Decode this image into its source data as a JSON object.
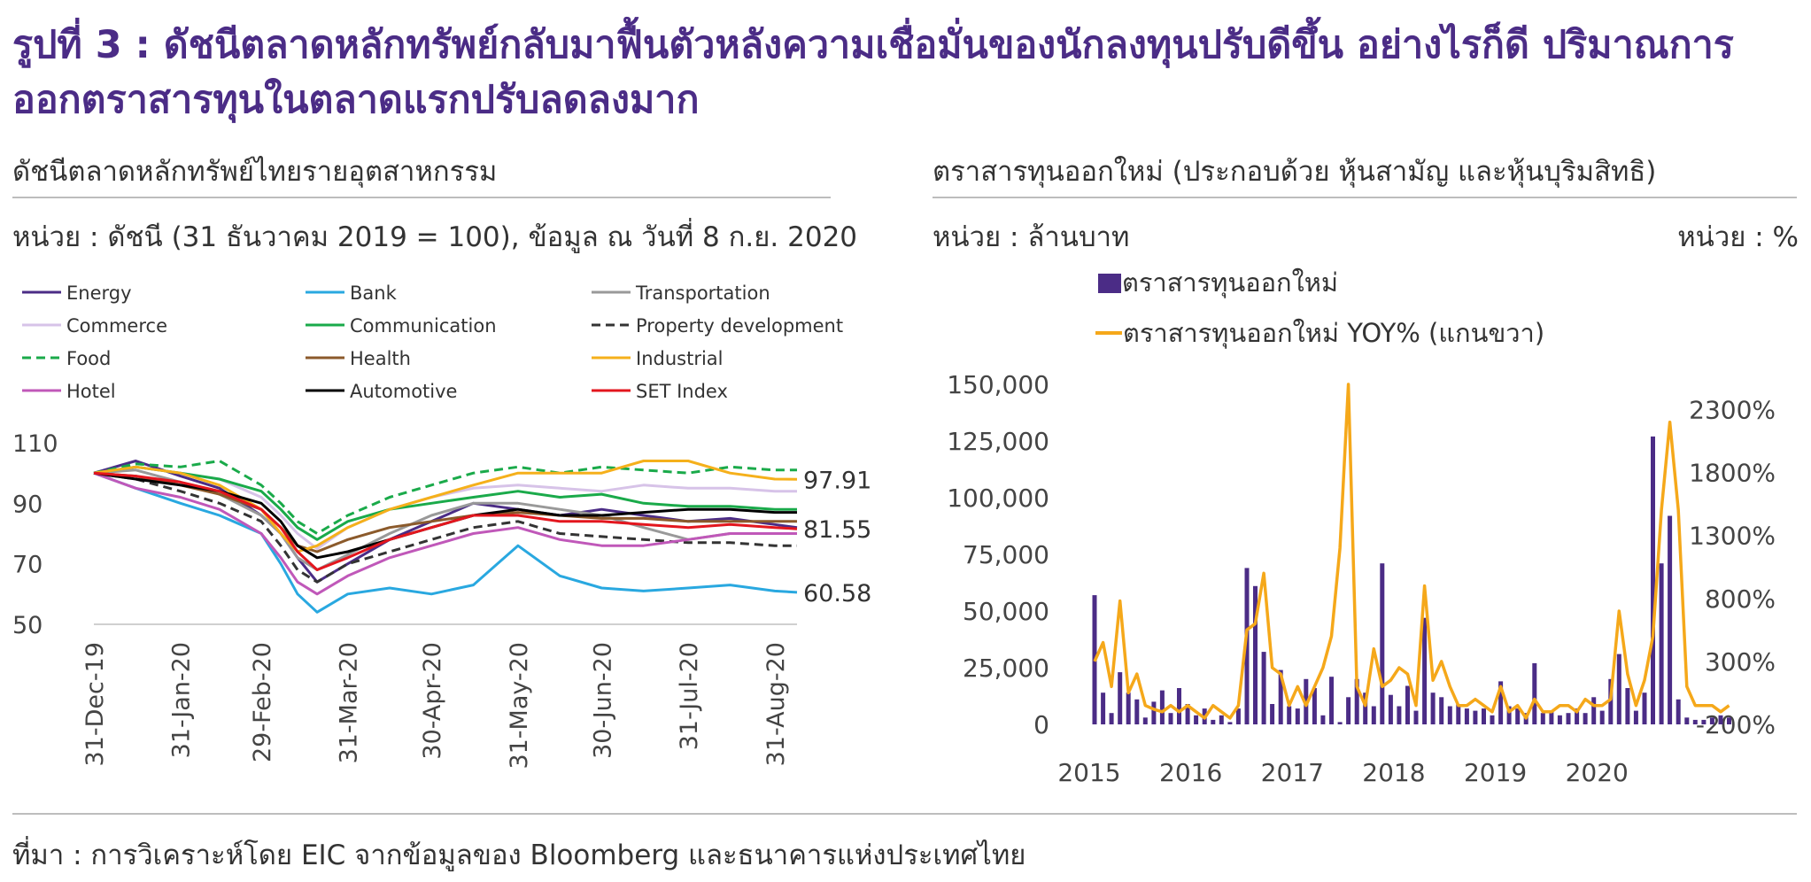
{
  "title": "รูปที่ 3 : ดัชนีตลาดหลักทรัพย์กลับมาฟื้นตัวหลังความเชื่อมั่นของนักลงทุนปรับดีขึ้น อย่างไรก็ดี ปริมาณการออกตราสารทุนในตลาดแรกปรับลดลงมาก",
  "source": "ที่มา : การวิเคราะห์โดย EIC จากข้อมูลของ Bloomberg และธนาคารแห่งประเทศไทย",
  "chart_data": [
    {
      "type": "line",
      "title": "ดัชนีตลาดหลักทรัพย์ไทยรายอุตสาหกรรม",
      "unit": "หน่วย : ดัชนี (31 ธันวาคม 2019 = 100), ข้อมูล ณ วันที่ 8 ก.ย. 2020",
      "ylim": [
        50,
        110
      ],
      "yticks": [
        "110",
        "90",
        "70",
        "50"
      ],
      "xlim": [
        "2019-12-31",
        "2020-09-08"
      ],
      "xticks": [
        "31-Dec-19",
        "31-Jan-20",
        "29-Feb-20",
        "31-Mar-20",
        "30-Apr-20",
        "31-May-20",
        "30-Jun-20",
        "31-Jul-20",
        "31-Aug-20"
      ],
      "x": [
        "2019-12-31",
        "2020-01-15",
        "2020-01-31",
        "2020-02-14",
        "2020-02-29",
        "2020-03-07",
        "2020-03-13",
        "2020-03-20",
        "2020-03-31",
        "2020-04-15",
        "2020-04-30",
        "2020-05-15",
        "2020-05-31",
        "2020-06-15",
        "2020-06-30",
        "2020-07-15",
        "2020-07-31",
        "2020-08-15",
        "2020-08-31",
        "2020-09-08"
      ],
      "series": [
        {
          "name": "Energy",
          "color": "#4b2c86",
          "dash": "",
          "values": [
            100,
            104,
            99,
            95,
            86,
            80,
            72,
            64,
            70,
            78,
            84,
            90,
            88,
            86,
            88,
            86,
            84,
            85,
            83,
            82
          ]
        },
        {
          "name": "Bank",
          "color": "#29a8e0",
          "dash": "",
          "values": [
            100,
            95,
            90,
            86,
            80,
            70,
            60,
            54,
            60,
            62,
            60,
            63,
            76,
            66,
            62,
            61,
            62,
            63,
            61,
            60.58
          ]
        },
        {
          "name": "Transportation",
          "color": "#999999",
          "dash": "",
          "values": [
            100,
            101,
            97,
            93,
            86,
            80,
            72,
            68,
            73,
            80,
            86,
            90,
            90,
            88,
            86,
            82,
            78,
            80,
            80,
            80
          ]
        },
        {
          "name": "Commerce",
          "color": "#d7c3e8",
          "dash": "",
          "values": [
            100,
            102,
            100,
            98,
            92,
            86,
            80,
            75,
            82,
            88,
            92,
            95,
            96,
            95,
            94,
            96,
            95,
            95,
            94,
            94
          ]
        },
        {
          "name": "Communication",
          "color": "#1aaa4a",
          "dash": "",
          "values": [
            100,
            102,
            100,
            98,
            94,
            88,
            82,
            78,
            84,
            88,
            90,
            92,
            94,
            92,
            93,
            90,
            89,
            89,
            88,
            88
          ]
        },
        {
          "name": "Property development",
          "color": "#333333",
          "dash": "10,6",
          "values": [
            100,
            98,
            94,
            90,
            84,
            76,
            68,
            64,
            70,
            74,
            78,
            82,
            84,
            80,
            79,
            78,
            77,
            77,
            76,
            76
          ]
        },
        {
          "name": "Food",
          "color": "#1aaa4a",
          "dash": "10,6",
          "values": [
            100,
            103,
            102,
            104,
            96,
            90,
            84,
            80,
            86,
            92,
            96,
            100,
            102,
            100,
            102,
            101,
            100,
            102,
            101,
            101
          ]
        },
        {
          "name": "Health",
          "color": "#8b5a2b",
          "dash": "",
          "values": [
            100,
            99,
            96,
            93,
            88,
            82,
            76,
            74,
            78,
            82,
            84,
            86,
            87,
            86,
            85,
            85,
            84,
            84,
            84,
            84
          ]
        },
        {
          "name": "Industrial",
          "color": "#f5b01b",
          "dash": "",
          "values": [
            100,
            102,
            100,
            96,
            88,
            80,
            74,
            76,
            82,
            88,
            92,
            96,
            100,
            100,
            100,
            104,
            104,
            100,
            98,
            97.91
          ]
        },
        {
          "name": "Hotel",
          "color": "#c058b9",
          "dash": "",
          "values": [
            100,
            95,
            92,
            88,
            80,
            72,
            64,
            60,
            66,
            72,
            76,
            80,
            82,
            78,
            76,
            76,
            78,
            80,
            80,
            80
          ]
        },
        {
          "name": "Automotive",
          "color": "#000000",
          "dash": "",
          "values": [
            100,
            98,
            96,
            94,
            90,
            84,
            76,
            72,
            74,
            78,
            82,
            86,
            88,
            86,
            86,
            87,
            88,
            88,
            87,
            87
          ]
        },
        {
          "name": "SET Index",
          "color": "#e3161e",
          "dash": "",
          "values": [
            100,
            99,
            97,
            94,
            88,
            82,
            74,
            68,
            72,
            78,
            82,
            86,
            86,
            84,
            84,
            83,
            82,
            83,
            82,
            81.55
          ]
        }
      ],
      "annotations": [
        {
          "label": "97.91",
          "value": 97.91
        },
        {
          "label": "81.55",
          "value": 81.55
        },
        {
          "label": "60.58",
          "value": 60.58
        }
      ]
    },
    {
      "type": "bar",
      "title": "ตราสารทุนออกใหม่ (ประกอบด้วย หุ้นสามัญ และหุ้นบุริมสิทธิ)",
      "unit_left": "หน่วย : ล้านบาท",
      "unit_right": "หน่วย : %",
      "ylim": [
        0,
        150000
      ],
      "yticks": [
        "150,000",
        "125,000",
        "100,000",
        "75,000",
        "50,000",
        "25,000",
        "0"
      ],
      "y2lim": [
        -200,
        2500
      ],
      "y2ticks": [
        "2300%",
        "1800%",
        "1300%",
        "800%",
        "300%",
        "-200%"
      ],
      "xlim": [
        2015,
        2020.6
      ],
      "xticks": [
        "2015",
        "2016",
        "2017",
        "2018",
        "2019",
        "2020"
      ],
      "series": [
        {
          "name": "ตราสารทุนออกใหม่",
          "color": "#4b2c86",
          "axis": "left",
          "values": [
            57000,
            14000,
            5000,
            23000,
            14000,
            11000,
            3000,
            10000,
            15000,
            5000,
            16000,
            9000,
            4000,
            7000,
            2000,
            4000,
            1000,
            7000,
            69000,
            61000,
            32000,
            9000,
            24000,
            8000,
            7000,
            20000,
            16000,
            4000,
            21000,
            1000,
            12000,
            20000,
            14000,
            8000,
            71000,
            13000,
            8000,
            17000,
            6000,
            47000,
            14000,
            12000,
            8000,
            9000,
            7000,
            6000,
            7000,
            4000,
            19000,
            8000,
            7000,
            5000,
            27000,
            5000,
            6000,
            4000,
            5000,
            7000,
            5000,
            12000,
            6000,
            20000,
            31000,
            16000,
            6000,
            14000,
            127000,
            71000,
            92000,
            11000,
            3000,
            2000,
            2000,
            3000,
            4000,
            3000
          ]
        },
        {
          "name": "ตราสารทุนออกใหม่ YOY% (แกนขวา)",
          "color": "#f5a81a",
          "axis": "right",
          "values": [
            300,
            450,
            100,
            780,
            50,
            200,
            -50,
            -80,
            -100,
            -50,
            -100,
            -50,
            -100,
            -150,
            -50,
            -100,
            -150,
            -50,
            550,
            600,
            1000,
            250,
            200,
            -50,
            100,
            -50,
            100,
            250,
            500,
            1200,
            2500,
            100,
            -50,
            400,
            100,
            150,
            250,
            200,
            -50,
            900,
            150,
            300,
            100,
            -50,
            -50,
            0,
            -50,
            -100,
            100,
            -100,
            -50,
            -150,
            0,
            -100,
            -100,
            -50,
            -50,
            -100,
            0,
            -50,
            -50,
            0,
            700,
            200,
            -50,
            150,
            500,
            1500,
            2200,
            1500,
            100,
            -50,
            -50,
            -50,
            -100,
            -50
          ]
        }
      ]
    }
  ]
}
